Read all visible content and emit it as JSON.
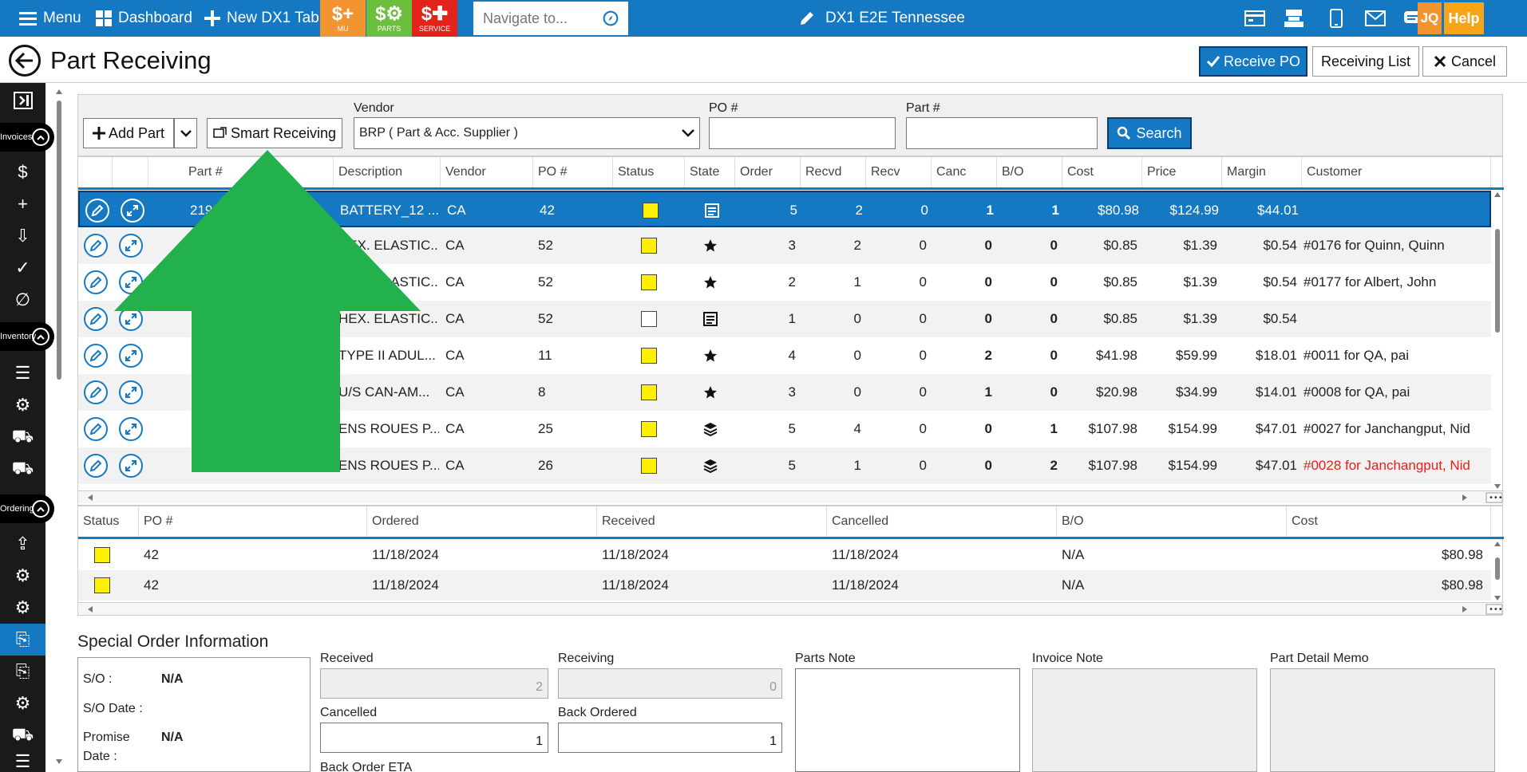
{
  "topbar": {
    "menu_label": "Menu",
    "dashboard_label": "Dashboard",
    "new_tab_label": "New DX1 Tab",
    "tiles": [
      {
        "label": "MU",
        "color": "#f49430"
      },
      {
        "label": "PARTS",
        "color": "#6cbf3c"
      },
      {
        "label": "SERVICE",
        "color": "#e2231a"
      }
    ],
    "navigate_placeholder": "Navigate to...",
    "dealer_title": "DX1 E2E Tennessee",
    "user_initials": "JQ",
    "help_label": "Help"
  },
  "header": {
    "title": "Part Receiving",
    "receive_po_label": "Receive PO",
    "receiving_list_label": "Receiving List",
    "cancel_label": "Cancel"
  },
  "sidebar": {
    "sections": [
      "Invoices",
      "Inventory",
      "Ordering"
    ]
  },
  "toolbar": {
    "add_part_label": "Add Part",
    "smart_receiving_label": "Smart Receiving",
    "vendor_label": "Vendor",
    "vendor_value": "BRP ( Part & Acc. Supplier )",
    "po_label": "PO #",
    "po_value": "",
    "part_label": "Part #",
    "part_value": "",
    "search_label": "Search"
  },
  "grid": {
    "columns": [
      "Part #",
      "Description",
      "Vendor",
      "PO #",
      "Status",
      "State",
      "Order",
      "Recvd",
      "Recv",
      "Canc",
      "B/O",
      "Cost",
      "Price",
      "Margin",
      "Customer"
    ],
    "rows": [
      {
        "part": "219",
        "desc": "BATTERY_12 ...",
        "vendor": "CA",
        "po": "42",
        "status": "yellow",
        "state": "list",
        "order": "5",
        "recvd": "2",
        "recv": "0",
        "canc": "1",
        "bo": "1",
        "cost": "$80.98",
        "price": "$124.99",
        "margin": "$44.01",
        "customer": ""
      },
      {
        "part": "",
        "desc": "HEX. ELASTIC...",
        "vendor": "CA",
        "po": "52",
        "status": "yellow",
        "state": "star",
        "order": "3",
        "recvd": "2",
        "recv": "0",
        "canc": "0",
        "bo": "0",
        "cost": "$0.85",
        "price": "$1.39",
        "margin": "$0.54",
        "customer": "#0176 for Quinn, Quinn"
      },
      {
        "part": "",
        "desc": "HEX. ELASTIC...",
        "vendor": "CA",
        "po": "52",
        "status": "yellow",
        "state": "star",
        "order": "2",
        "recvd": "1",
        "recv": "0",
        "canc": "0",
        "bo": "0",
        "cost": "$0.85",
        "price": "$1.39",
        "margin": "$0.54",
        "customer": "#0177 for Albert, John"
      },
      {
        "part": "",
        "desc": "HEX. ELASTIC...",
        "vendor": "CA",
        "po": "52",
        "status": "white",
        "state": "list",
        "order": "1",
        "recvd": "0",
        "recv": "0",
        "canc": "0",
        "bo": "0",
        "cost": "$0.85",
        "price": "$1.39",
        "margin": "$0.54",
        "customer": ""
      },
      {
        "part": "",
        "desc": "TYPE II ADUL...",
        "vendor": "CA",
        "po": "11",
        "status": "yellow",
        "state": "star",
        "order": "4",
        "recvd": "0",
        "recv": "0",
        "canc": "2",
        "bo": "0",
        "cost": "$41.98",
        "price": "$59.99",
        "margin": "$18.01",
        "customer": "#0011 for QA, pai"
      },
      {
        "part": "",
        "desc": "U/S CAN-AM...",
        "vendor": "CA",
        "po": "8",
        "status": "yellow",
        "state": "star",
        "order": "3",
        "recvd": "0",
        "recv": "0",
        "canc": "1",
        "bo": "0",
        "cost": "$20.98",
        "price": "$34.99",
        "margin": "$14.01",
        "customer": "#0008 for QA, pai"
      },
      {
        "part": "",
        "desc": "ENS ROUES P...",
        "vendor": "CA",
        "po": "25",
        "status": "yellow",
        "state": "stack",
        "order": "5",
        "recvd": "4",
        "recv": "0",
        "canc": "0",
        "bo": "1",
        "cost": "$107.98",
        "price": "$154.99",
        "margin": "$47.01",
        "customer": "#0027 for Janchangput, Nid"
      },
      {
        "part": "",
        "desc": "ENS ROUES P...",
        "vendor": "CA",
        "po": "26",
        "status": "yellow",
        "state": "stack",
        "order": "5",
        "recvd": "1",
        "recv": "0",
        "canc": "0",
        "bo": "2",
        "cost": "$107.98",
        "price": "$154.99",
        "margin": "$47.01",
        "customer": "#0028 for Janchangput, Nid",
        "customer_color": "#e2231a"
      }
    ]
  },
  "subgrid": {
    "columns": [
      "Status",
      "PO #",
      "Ordered",
      "Received",
      "Cancelled",
      "B/O",
      "Cost"
    ],
    "rows": [
      {
        "po": "42",
        "ordered": "11/18/2024",
        "received": "11/18/2024",
        "cancelled": "11/18/2024",
        "bo": "N/A",
        "cost": "$80.98"
      },
      {
        "po": "42",
        "ordered": "11/18/2024",
        "received": "11/18/2024",
        "cancelled": "11/18/2024",
        "bo": "N/A",
        "cost": "$80.98"
      }
    ]
  },
  "special_order": {
    "title": "Special Order Information",
    "so_label": "S/O :",
    "so_value": "N/A",
    "so_date_label": "S/O Date :",
    "promise_label": "Promise",
    "promise_label2": "Date :",
    "promise_value": "N/A",
    "received_label": "Received",
    "received_value": "2",
    "receiving_label": "Receiving",
    "receiving_value": "0",
    "cancelled_label": "Cancelled",
    "cancelled_value": "1",
    "back_ordered_label": "Back Ordered",
    "back_ordered_value": "1",
    "back_order_eta_label": "Back Order ETA",
    "parts_note_label": "Parts Note",
    "invoice_note_label": "Invoice Note",
    "part_detail_memo_label": "Part Detail Memo"
  },
  "colors": {
    "accent": "#1479c2",
    "arrow": "#22b14c",
    "status_yellow": "#ffef00"
  }
}
